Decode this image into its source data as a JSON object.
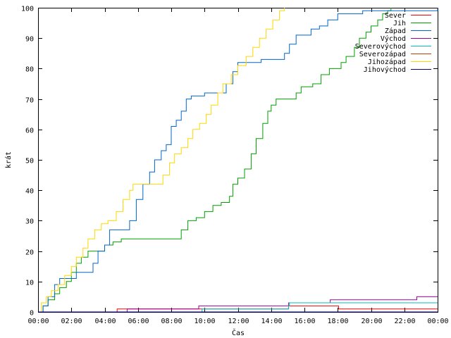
{
  "chart_data": {
    "type": "line",
    "title": "",
    "xlabel": "Čas",
    "ylabel": "krát",
    "xlim": [
      0,
      24
    ],
    "ylim": [
      0,
      100
    ],
    "grid": false,
    "legend_position": "top-right",
    "x_ticks": [
      {
        "x": 0,
        "label": "00:00"
      },
      {
        "x": 2,
        "label": "02:00"
      },
      {
        "x": 4,
        "label": "04:00"
      },
      {
        "x": 6,
        "label": "06:00"
      },
      {
        "x": 8,
        "label": "08:00"
      },
      {
        "x": 10,
        "label": "10:00"
      },
      {
        "x": 12,
        "label": "12:00"
      },
      {
        "x": 14,
        "label": "14:00"
      },
      {
        "x": 16,
        "label": "16:00"
      },
      {
        "x": 18,
        "label": "18:00"
      },
      {
        "x": 20,
        "label": "20:00"
      },
      {
        "x": 22,
        "label": "22:00"
      },
      {
        "x": 24,
        "label": "00:00"
      }
    ],
    "y_ticks": [
      0,
      10,
      20,
      30,
      40,
      50,
      60,
      70,
      80,
      90,
      100
    ],
    "series": [
      {
        "name": "Sever",
        "color": "#ff0000",
        "points": [
          [
            0,
            0
          ],
          [
            4.7,
            0
          ],
          [
            4.75,
            1
          ],
          [
            15,
            1
          ],
          [
            15.05,
            2
          ],
          [
            18,
            2
          ],
          [
            18.05,
            1
          ],
          [
            24,
            1
          ]
        ]
      },
      {
        "name": "Jih",
        "color": "#00a000",
        "points": [
          [
            0,
            0
          ],
          [
            0.3,
            2
          ],
          [
            0.6,
            4
          ],
          [
            1,
            6
          ],
          [
            1.3,
            8
          ],
          [
            1.7,
            10
          ],
          [
            2,
            13
          ],
          [
            2.3,
            16
          ],
          [
            2.6,
            18
          ],
          [
            3,
            20
          ],
          [
            3.6,
            20
          ],
          [
            4,
            22
          ],
          [
            4.5,
            23
          ],
          [
            5,
            24
          ],
          [
            6,
            24
          ],
          [
            7,
            24
          ],
          [
            8.3,
            24
          ],
          [
            8.6,
            27
          ],
          [
            9,
            30
          ],
          [
            9.5,
            31
          ],
          [
            10,
            33
          ],
          [
            10.5,
            35
          ],
          [
            11,
            36
          ],
          [
            11.5,
            38
          ],
          [
            11.7,
            42
          ],
          [
            12,
            44
          ],
          [
            12.4,
            47
          ],
          [
            12.8,
            52
          ],
          [
            13.1,
            57
          ],
          [
            13.5,
            62
          ],
          [
            13.8,
            66
          ],
          [
            14,
            68
          ],
          [
            14.3,
            70
          ],
          [
            15,
            70
          ],
          [
            15.5,
            72
          ],
          [
            15.8,
            74
          ],
          [
            16.5,
            75
          ],
          [
            17,
            78
          ],
          [
            17.5,
            80
          ],
          [
            18,
            80
          ],
          [
            18.2,
            82
          ],
          [
            18.5,
            84
          ],
          [
            19,
            87
          ],
          [
            19.3,
            90
          ],
          [
            19.7,
            92
          ],
          [
            20,
            94
          ],
          [
            20.4,
            96
          ],
          [
            20.7,
            98
          ],
          [
            21,
            99
          ],
          [
            21.2,
            100
          ]
        ]
      },
      {
        "name": "Západ",
        "color": "#0066cc",
        "points": [
          [
            0,
            0
          ],
          [
            0.3,
            2
          ],
          [
            0.6,
            5
          ],
          [
            1,
            9
          ],
          [
            1.3,
            11
          ],
          [
            2,
            11
          ],
          [
            2.3,
            13
          ],
          [
            3,
            13
          ],
          [
            3.3,
            16
          ],
          [
            3.6,
            20
          ],
          [
            4,
            22
          ],
          [
            4.3,
            27
          ],
          [
            5,
            27
          ],
          [
            5.5,
            30
          ],
          [
            5.9,
            37
          ],
          [
            6.3,
            42
          ],
          [
            6.7,
            46
          ],
          [
            7,
            50
          ],
          [
            7.4,
            53
          ],
          [
            7.7,
            55
          ],
          [
            8,
            61
          ],
          [
            8.3,
            63
          ],
          [
            8.6,
            66
          ],
          [
            8.9,
            70
          ],
          [
            9.2,
            71
          ],
          [
            9.6,
            71
          ],
          [
            10,
            72
          ],
          [
            11,
            72
          ],
          [
            11.3,
            75
          ],
          [
            11.7,
            79
          ],
          [
            12,
            82
          ],
          [
            13,
            82
          ],
          [
            13.4,
            83
          ],
          [
            14,
            83
          ],
          [
            14.5,
            83
          ],
          [
            14.8,
            85
          ],
          [
            15.1,
            88
          ],
          [
            15.5,
            91
          ],
          [
            16,
            91
          ],
          [
            16.4,
            93
          ],
          [
            16.9,
            94
          ],
          [
            17.4,
            96
          ],
          [
            17.8,
            96
          ],
          [
            18,
            98
          ],
          [
            19,
            98
          ],
          [
            19.5,
            99
          ],
          [
            21,
            99
          ],
          [
            23,
            99
          ],
          [
            24,
            100
          ]
        ]
      },
      {
        "name": "Východ",
        "color": "#a000a0",
        "points": [
          [
            0,
            0
          ],
          [
            5.3,
            0
          ],
          [
            5.35,
            1
          ],
          [
            9.6,
            1
          ],
          [
            9.65,
            2
          ],
          [
            15,
            2
          ],
          [
            15.05,
            3
          ],
          [
            17.5,
            3
          ],
          [
            17.55,
            4
          ],
          [
            22.7,
            4
          ],
          [
            22.75,
            5
          ],
          [
            24,
            5
          ]
        ]
      },
      {
        "name": "Severovýchod",
        "color": "#00c0c0",
        "points": [
          [
            0,
            0
          ],
          [
            9.8,
            0
          ],
          [
            9.85,
            1
          ],
          [
            15,
            1
          ],
          [
            15.05,
            2
          ],
          [
            15.1,
            3
          ],
          [
            24,
            3
          ]
        ]
      },
      {
        "name": "Severozápad",
        "color": "#c04000",
        "points": [
          [
            0,
            0
          ],
          [
            24,
            0
          ]
        ]
      },
      {
        "name": "Jihozápad",
        "color": "#ffd700",
        "points": [
          [
            0,
            0
          ],
          [
            0.2,
            3
          ],
          [
            0.5,
            5
          ],
          [
            0.8,
            7
          ],
          [
            1.2,
            9
          ],
          [
            1.6,
            12
          ],
          [
            2,
            15
          ],
          [
            2.3,
            18
          ],
          [
            2.7,
            21
          ],
          [
            3,
            24
          ],
          [
            3.4,
            27
          ],
          [
            3.8,
            29
          ],
          [
            4.2,
            30
          ],
          [
            4.7,
            33
          ],
          [
            5.1,
            37
          ],
          [
            5.5,
            40
          ],
          [
            5.7,
            42
          ],
          [
            6.3,
            42
          ],
          [
            7.2,
            42
          ],
          [
            7.5,
            45
          ],
          [
            7.9,
            49
          ],
          [
            8.2,
            52
          ],
          [
            8.6,
            54
          ],
          [
            9,
            57
          ],
          [
            9.3,
            60
          ],
          [
            9.7,
            62
          ],
          [
            10.1,
            65
          ],
          [
            10.4,
            68
          ],
          [
            10.8,
            72
          ],
          [
            11.1,
            75
          ],
          [
            11.6,
            78
          ],
          [
            12,
            81
          ],
          [
            12.5,
            84
          ],
          [
            12.9,
            87
          ],
          [
            13.3,
            90
          ],
          [
            13.7,
            93
          ],
          [
            14.1,
            96
          ],
          [
            14.5,
            99
          ],
          [
            14.8,
            100
          ]
        ]
      },
      {
        "name": "Jihovýchod",
        "color": "#000080",
        "points": [
          [
            0,
            0
          ],
          [
            24,
            0
          ]
        ]
      }
    ]
  }
}
